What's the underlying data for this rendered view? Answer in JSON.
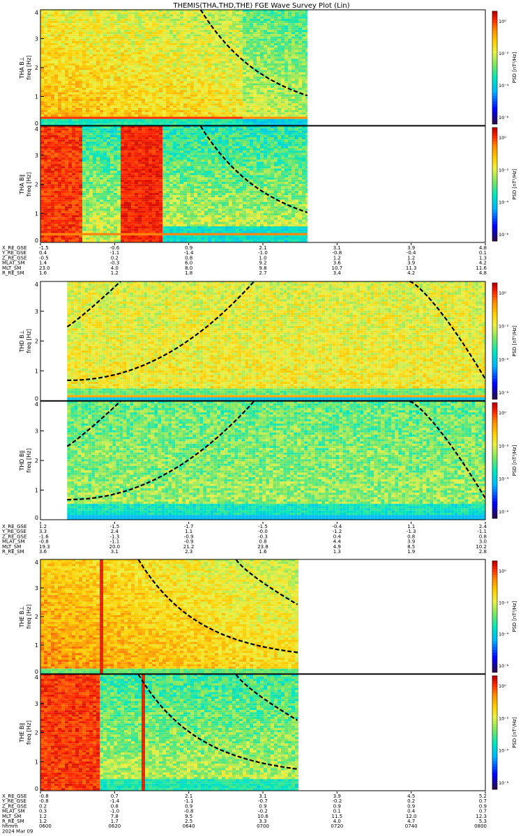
{
  "title": "THEMIS(THA,THD,THE) FGE Wave Survey Plot (Lin)",
  "colors": {
    "spectrogram_scale": [
      "#2a0a4a",
      "#0000ff",
      "#00b4ff",
      "#00e8c0",
      "#7ee860",
      "#e8f040",
      "#ffd000",
      "#ff8c00",
      "#ff2800",
      "#c00000"
    ],
    "cyclotron_line": "#000000"
  },
  "colorbar": {
    "label": "PSD [nT²/Hz]",
    "ticks_top_panels": [
      "10⁰",
      "10⁻²",
      "10⁻⁴",
      "10⁻⁶"
    ],
    "ticks_lower_panels": [
      "10⁰",
      "10⁻²",
      "10⁻⁴",
      "10⁻⁶"
    ]
  },
  "chart_data": [
    {
      "type": "heatmap",
      "probe": "THA",
      "component": "B⊥",
      "ylabel": "THA B⊥\nfreq [Hz]",
      "ylim": [
        0,
        4
      ],
      "yticks": [
        "0",
        "1",
        "2",
        "3",
        "4"
      ],
      "coverage": [
        0,
        0.6
      ],
      "style": "tha_perp"
    },
    {
      "type": "heatmap",
      "probe": "THA",
      "component": "B∥",
      "ylabel": "THA B∥\nfreq [Hz]",
      "ylim": [
        0,
        4
      ],
      "yticks": [
        "0",
        "1",
        "2",
        "3",
        "4"
      ],
      "coverage": [
        0,
        0.6
      ],
      "style": "tha_par"
    },
    {
      "type": "heatmap",
      "probe": "THD",
      "component": "B⊥",
      "ylabel": "THD B⊥\nfreq [Hz]",
      "ylim": [
        0,
        4
      ],
      "yticks": [
        "0",
        "1",
        "2",
        "3",
        "4"
      ],
      "coverage": [
        0.06,
        1
      ],
      "style": "thd_perp"
    },
    {
      "type": "heatmap",
      "probe": "THD",
      "component": "B∥",
      "ylabel": "THD B∥\nfreq [Hz]",
      "ylim": [
        0,
        4
      ],
      "yticks": [
        "0",
        "1",
        "2",
        "3",
        "4"
      ],
      "coverage": [
        0.06,
        1
      ],
      "style": "thd_par"
    },
    {
      "type": "heatmap",
      "probe": "THE",
      "component": "B⊥",
      "ylabel": "THE B⊥\nfreq [Hz]",
      "ylim": [
        0,
        4
      ],
      "yticks": [
        "0",
        "1",
        "2",
        "3",
        "4"
      ],
      "coverage": [
        0,
        0.58
      ],
      "style": "the_perp"
    },
    {
      "type": "heatmap",
      "probe": "THE",
      "component": "B∥",
      "ylabel": "THE B∥\nfreq [Hz]",
      "ylim": [
        0,
        4
      ],
      "yticks": [
        "0",
        "1",
        "2",
        "3",
        "4"
      ],
      "coverage": [
        0,
        0.58
      ],
      "style": "the_par"
    }
  ],
  "ephemeris": [
    {
      "labels": [
        "X_RE_GSE",
        "Y_RE_GSE",
        "Z_RE_GSE",
        "MLAT_SM",
        "MLT_SM",
        "R_RE_SM"
      ],
      "columns": [
        [
          "-1.5",
          "0.4",
          "-0.5",
          "1.4",
          "23.0",
          "1.6"
        ],
        [
          "-0.6",
          "-1.1",
          "0.2",
          "-0.3",
          "4.0",
          "1.2"
        ],
        [
          "0.9",
          "-1.4",
          "0.8",
          "6.0",
          "8.0",
          "1.8"
        ],
        [
          "2.1",
          "-1.0",
          "1.0",
          "9.2",
          "9.8",
          "2.7"
        ],
        [
          "3.1",
          "-0.8",
          "1.2",
          "3.6",
          "10.7",
          "3.4"
        ],
        [
          "3.9",
          "-0.4",
          "1.2",
          "3.9",
          "11.3",
          "4.2"
        ],
        [
          "4.8",
          "0.1",
          "1.3",
          "4.2",
          "11.6",
          "4.8"
        ]
      ]
    },
    {
      "labels": [
        "X_RE_GSE",
        "Y_RE_GSE",
        "Z_RE_GSE",
        "MLAT_SM",
        "MLT_SM",
        "R_RE_SM"
      ],
      "columns": [
        [
          "1.2",
          "3.3",
          "-1.6",
          "-0.8",
          "19.3",
          "3.6"
        ],
        [
          "-1.5",
          "2.4",
          "-1.3",
          "-1.1",
          "20.0",
          "3.1"
        ],
        [
          "-1.7",
          "1.1",
          "-0.9",
          "-0.9",
          "21.2",
          "2.3"
        ],
        [
          "-1.5",
          "-0.0",
          "-0.3",
          "0.8",
          "23.8",
          "1.6"
        ],
        [
          "-0.4",
          "-1.2",
          "0.4",
          "4.4",
          "4.9",
          "1.3"
        ],
        [
          "1.1",
          "-1.3",
          "0.8",
          "3.9",
          "8.5",
          "1.9"
        ],
        [
          "2.4",
          "-1.1",
          "0.8",
          "3.0",
          "10.2",
          "2.8"
        ]
      ]
    },
    {
      "labels": [
        "X_RE_GSE",
        "Y_RE_GSE",
        "Z_RE_GSE",
        "MLAT_SM",
        "MLT_SM",
        "R_RE_SM",
        "hhmm",
        "2024 Mar 09"
      ],
      "columns": [
        [
          "-0.8",
          "-0.8",
          "0.2",
          "0.3",
          "1.2",
          "1.2",
          "0600"
        ],
        [
          "0.7",
          "-1.4",
          "0.8",
          "-1.0",
          "7.8",
          "1.7",
          "0620"
        ],
        [
          "2.1",
          "-1.1",
          "0.9",
          "-0.8",
          "9.5",
          "2.5",
          "0640"
        ],
        [
          "3.1",
          "-0.7",
          "0.9",
          "-0.2",
          "10.6",
          "3.3",
          "0700"
        ],
        [
          "3.9",
          "-0.2",
          "0.9",
          "0.1",
          "11.5",
          "4.0",
          "0720"
        ],
        [
          "4.5",
          "0.2",
          "0.9",
          "0.4",
          "12.0",
          "4.7",
          "0740"
        ],
        [
          "5.2",
          "0.7",
          "0.9",
          "0.7",
          "12.3",
          "5.3",
          "0800"
        ]
      ]
    }
  ]
}
